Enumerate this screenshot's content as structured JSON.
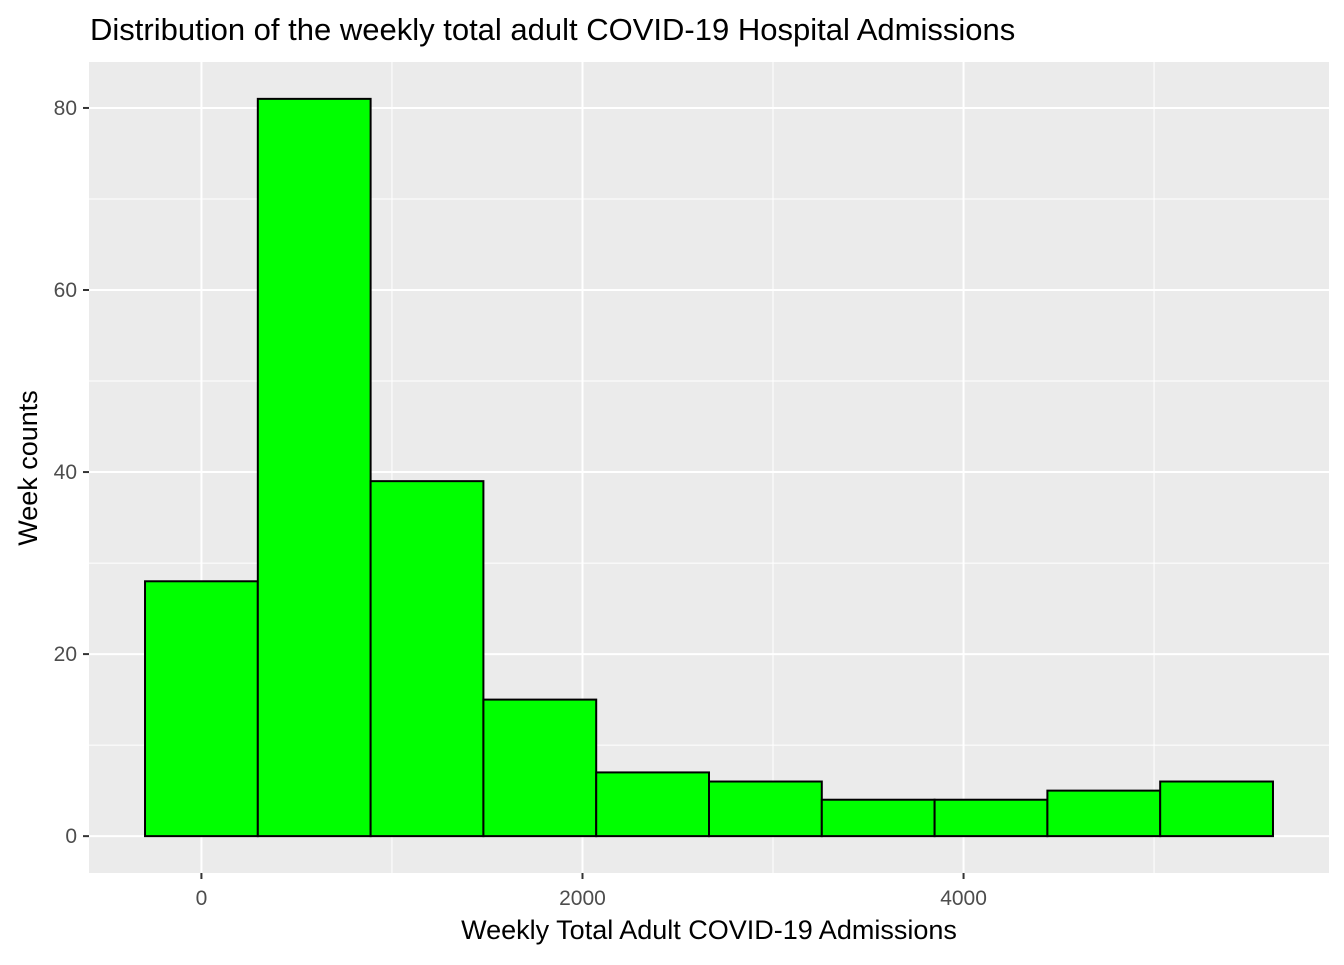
{
  "chart_data": {
    "type": "bar",
    "title": "Distribution of the weekly total adult COVID-19 Hospital Admissions",
    "xlabel": "Weekly Total Adult COVID-19 Admissions",
    "ylabel": "Week counts",
    "bin_edges": [
      -296,
      296,
      888,
      1480,
      2072,
      2664,
      3256,
      3848,
      4440,
      5032,
      5624
    ],
    "values": [
      28,
      81,
      39,
      15,
      7,
      6,
      4,
      4,
      5,
      6
    ],
    "xlim": [
      -590,
      5918
    ],
    "ylim": [
      -4.05,
      85.05
    ],
    "x_ticks": [
      0,
      2000,
      4000
    ],
    "x_tick_labels": [
      "0",
      "2000",
      "4000"
    ],
    "x_minor_ticks": [
      1000,
      3000,
      5000
    ],
    "y_ticks": [
      0,
      20,
      40,
      60,
      80
    ],
    "y_tick_labels": [
      "0",
      "20",
      "40",
      "60",
      "80"
    ],
    "y_minor_ticks": [
      10,
      30,
      50,
      70
    ],
    "grid": true,
    "colors": {
      "bar_fill": "#00ff00",
      "bar_stroke": "#000000",
      "panel_background": "#ebebeb",
      "grid": "#ffffff",
      "tick_text": "#4d4d4d",
      "tick_mark": "#333333"
    }
  }
}
